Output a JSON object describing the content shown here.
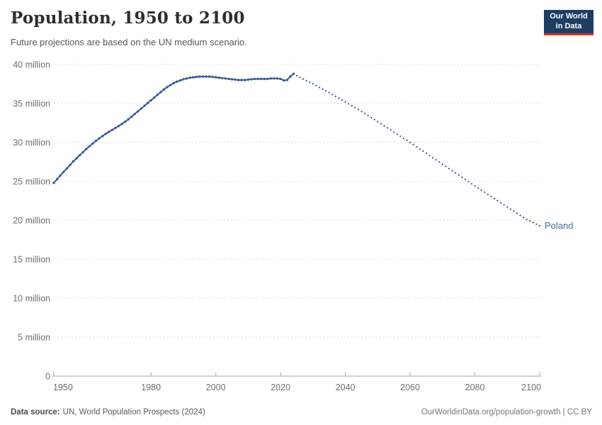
{
  "header": {
    "title": "Population, 1950 to 2100",
    "subtitle": "Future projections are based on the UN medium scenario.",
    "logo": {
      "line1": "Our World",
      "line2": "in Data",
      "bg_color": "#1d3d63",
      "accent_color": "#d0342a"
    }
  },
  "footer": {
    "source_label": "Data source:",
    "source_text": "UN, World Population Prospects (2024)",
    "link_text": "OurWorldinData.org/population-growth | CC BY"
  },
  "chart_data": {
    "type": "line",
    "entity": "Poland",
    "end_label": "Poland",
    "unit": "million people",
    "xlim": [
      1950,
      2100
    ],
    "ylim": [
      0,
      40
    ],
    "grid": true,
    "x_ticks": [
      1950,
      1980,
      2000,
      2020,
      2040,
      2060,
      2080,
      2100
    ],
    "y_ticks": [
      0,
      5,
      10,
      15,
      20,
      25,
      30,
      35,
      40
    ],
    "y_tick_suffix": " million",
    "colors": {
      "line": "#3d5b95",
      "label": "#4c6a9c",
      "grid": "#dcdcdc",
      "axis": "#a6a6a6",
      "tick_text": "#6e6e6e"
    },
    "series": [
      {
        "name": "Poland — estimates",
        "style": "solid_dots",
        "x": [
          1950,
          1951,
          1952,
          1953,
          1954,
          1955,
          1956,
          1957,
          1958,
          1959,
          1960,
          1961,
          1962,
          1963,
          1964,
          1965,
          1966,
          1967,
          1968,
          1969,
          1970,
          1971,
          1972,
          1973,
          1974,
          1975,
          1976,
          1977,
          1978,
          1979,
          1980,
          1981,
          1982,
          1983,
          1984,
          1985,
          1986,
          1987,
          1988,
          1989,
          1990,
          1991,
          1992,
          1993,
          1994,
          1995,
          1996,
          1997,
          1998,
          1999,
          2000,
          2001,
          2002,
          2003,
          2004,
          2005,
          2006,
          2007,
          2008,
          2009,
          2010,
          2011,
          2012,
          2013,
          2014,
          2015,
          2016,
          2017,
          2018,
          2019,
          2020,
          2021,
          2022,
          2023,
          2024
        ],
        "values": [
          24.8,
          25.27,
          25.75,
          26.2,
          26.65,
          27.1,
          27.55,
          27.95,
          28.35,
          28.75,
          29.15,
          29.5,
          29.85,
          30.2,
          30.5,
          30.8,
          31.1,
          31.35,
          31.6,
          31.85,
          32.1,
          32.35,
          32.65,
          32.95,
          33.3,
          33.65,
          34.0,
          34.35,
          34.7,
          35.05,
          35.4,
          35.75,
          36.1,
          36.45,
          36.8,
          37.1,
          37.35,
          37.6,
          37.8,
          37.95,
          38.1,
          38.2,
          38.3,
          38.35,
          38.4,
          38.45,
          38.45,
          38.45,
          38.45,
          38.4,
          38.35,
          38.3,
          38.25,
          38.2,
          38.15,
          38.1,
          38.05,
          38.0,
          38.0,
          38.0,
          38.05,
          38.1,
          38.15,
          38.15,
          38.15,
          38.15,
          38.15,
          38.2,
          38.2,
          38.2,
          38.15,
          37.95,
          38.0,
          38.45,
          38.8
        ]
      },
      {
        "name": "Poland — UN medium projection",
        "style": "dotted",
        "x": [
          2024,
          2025,
          2026,
          2027,
          2028,
          2029,
          2030,
          2031,
          2032,
          2033,
          2034,
          2035,
          2036,
          2037,
          2038,
          2039,
          2040,
          2041,
          2042,
          2043,
          2044,
          2045,
          2046,
          2047,
          2048,
          2049,
          2050,
          2051,
          2052,
          2053,
          2054,
          2055,
          2056,
          2057,
          2058,
          2059,
          2060,
          2061,
          2062,
          2063,
          2064,
          2065,
          2066,
          2067,
          2068,
          2069,
          2070,
          2071,
          2072,
          2073,
          2074,
          2075,
          2076,
          2077,
          2078,
          2079,
          2080,
          2081,
          2082,
          2083,
          2084,
          2085,
          2086,
          2087,
          2088,
          2089,
          2090,
          2091,
          2092,
          2093,
          2094,
          2095,
          2096,
          2097,
          2098,
          2099,
          2100
        ],
        "values": [
          38.8,
          38.55,
          38.33,
          38.12,
          37.92,
          37.71,
          37.5,
          37.28,
          37.05,
          36.83,
          36.6,
          36.38,
          36.15,
          35.91,
          35.67,
          35.44,
          35.2,
          34.95,
          34.7,
          34.45,
          34.2,
          33.95,
          33.7,
          33.45,
          33.18,
          32.92,
          32.65,
          32.39,
          32.12,
          31.86,
          31.6,
          31.32,
          31.05,
          30.78,
          30.51,
          30.25,
          29.98,
          29.7,
          29.43,
          29.15,
          28.88,
          28.6,
          28.32,
          28.04,
          27.76,
          27.48,
          27.2,
          26.92,
          26.64,
          26.36,
          26.08,
          25.8,
          25.52,
          25.24,
          24.96,
          24.68,
          24.4,
          24.14,
          23.87,
          23.6,
          23.33,
          23.06,
          22.79,
          22.52,
          22.25,
          21.98,
          21.7,
          21.43,
          21.16,
          20.89,
          20.62,
          20.35,
          20.13,
          19.92,
          19.71,
          19.5,
          19.3
        ]
      }
    ]
  }
}
